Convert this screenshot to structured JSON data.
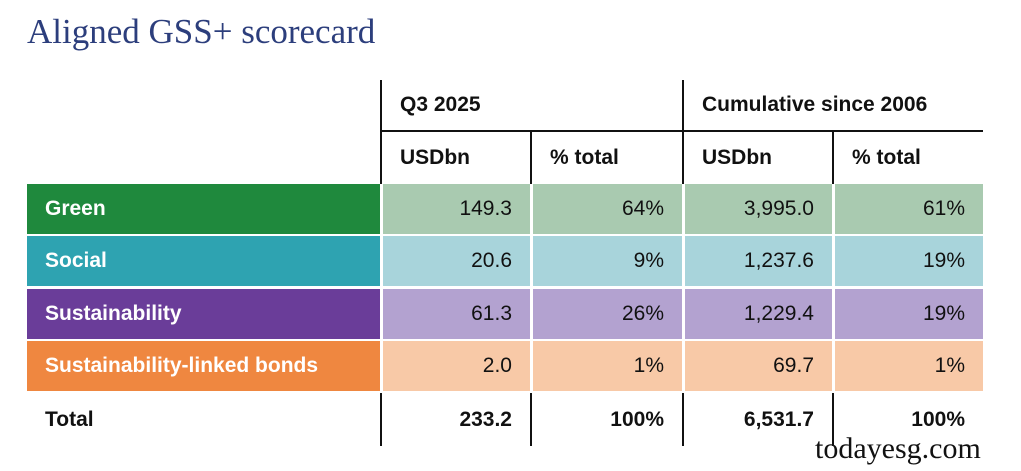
{
  "title": "Aligned GSS+ scorecard",
  "table": {
    "groups": [
      "Q3 2025",
      "Cumulative since 2006"
    ],
    "columns": [
      "USDbn",
      "% total",
      "USDbn",
      "% total"
    ],
    "rows": [
      {
        "label": "Green",
        "cells": [
          "149.3",
          "64%",
          "3,995.0",
          "61%"
        ]
      },
      {
        "label": "Social",
        "cells": [
          "20.6",
          "9%",
          "1,237.6",
          "19%"
        ]
      },
      {
        "label": "Sustainability",
        "cells": [
          "61.3",
          "26%",
          "1,229.4",
          "19%"
        ]
      },
      {
        "label": "Sustainability-linked bonds",
        "cells": [
          "2.0",
          "1%",
          "69.7",
          "1%"
        ]
      }
    ],
    "total": {
      "label": "Total",
      "cells": [
        "233.2",
        "100%",
        "6,531.7",
        "100%"
      ]
    }
  },
  "watermark": "todayesg.com"
}
